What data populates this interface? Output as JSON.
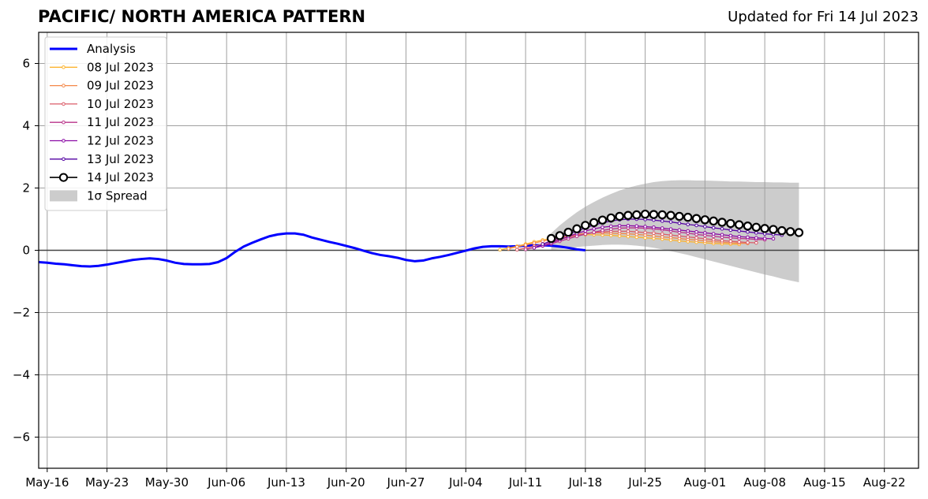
{
  "header": {
    "title": "PACIFIC/ NORTH AMERICA PATTERN",
    "updated": "Updated for Fri 14 Jul 2023"
  },
  "chart_data": {
    "type": "line",
    "title": "PACIFIC/ NORTH AMERICA PATTERN",
    "subtitle": "Updated for Fri 14 Jul 2023",
    "xlabel": "",
    "ylabel": "",
    "xlim": [
      "2023-05-15",
      "2023-08-26"
    ],
    "ylim": [
      -7,
      7
    ],
    "x_ticks": [
      "May-16",
      "May-23",
      "May-30",
      "Jun-06",
      "Jun-13",
      "Jun-20",
      "Jun-27",
      "Jul-04",
      "Jul-11",
      "Jul-18",
      "Jul-25",
      "Aug-01",
      "Aug-08",
      "Aug-15",
      "Aug-22"
    ],
    "x_tick_dates": [
      "2023-05-16",
      "2023-05-23",
      "2023-05-30",
      "2023-06-06",
      "2023-06-13",
      "2023-06-20",
      "2023-06-27",
      "2023-07-04",
      "2023-07-11",
      "2023-07-18",
      "2023-07-25",
      "2023-08-01",
      "2023-08-08",
      "2023-08-15",
      "2023-08-22"
    ],
    "y_ticks": [
      6,
      4,
      2,
      0,
      -2,
      -4,
      -6
    ],
    "y_tick_labels": [
      "6",
      "4",
      "2",
      "0",
      "−2",
      "−4",
      "−6"
    ],
    "grid": true,
    "legend_position": "top-left",
    "zero_line": 0,
    "analysis": {
      "name": "Analysis",
      "color": "#0000ff",
      "start": "2023-05-15",
      "values": [
        -0.38,
        -0.4,
        -0.43,
        -0.45,
        -0.48,
        -0.51,
        -0.52,
        -0.5,
        -0.46,
        -0.41,
        -0.36,
        -0.31,
        -0.28,
        -0.26,
        -0.28,
        -0.33,
        -0.4,
        -0.44,
        -0.45,
        -0.45,
        -0.44,
        -0.38,
        -0.25,
        -0.05,
        0.12,
        0.24,
        0.35,
        0.45,
        0.51,
        0.54,
        0.54,
        0.5,
        0.41,
        0.34,
        0.27,
        0.21,
        0.14,
        0.07,
        -0.01,
        -0.09,
        -0.15,
        -0.19,
        -0.24,
        -0.31,
        -0.35,
        -0.33,
        -0.26,
        -0.21,
        -0.15,
        -0.08,
        -0.01,
        0.06,
        0.11,
        0.13,
        0.13,
        0.12,
        0.13,
        0.15,
        0.16,
        0.16,
        0.15,
        0.12,
        0.08,
        0.03,
        0.0
      ]
    },
    "series": [
      {
        "name": "08 Jul 2023",
        "color": "#fdb42f",
        "start": "2023-07-08",
        "values": [
          0.02,
          0.07,
          0.13,
          0.2,
          0.27,
          0.33,
          0.38,
          0.43,
          0.47,
          0.49,
          0.5,
          0.5,
          0.49,
          0.48,
          0.46,
          0.44,
          0.42,
          0.4,
          0.38,
          0.36,
          0.33,
          0.3,
          0.28,
          0.26,
          0.24,
          0.22,
          0.21,
          0.2,
          0.19
        ]
      },
      {
        "name": "09 Jul 2023",
        "color": "#f48849",
        "start": "2023-07-09",
        "values": [
          0.05,
          0.11,
          0.17,
          0.23,
          0.29,
          0.35,
          0.41,
          0.46,
          0.51,
          0.54,
          0.56,
          0.56,
          0.55,
          0.54,
          0.53,
          0.51,
          0.49,
          0.46,
          0.43,
          0.41,
          0.38,
          0.35,
          0.33,
          0.3,
          0.28,
          0.26,
          0.24,
          0.23,
          0.22
        ]
      },
      {
        "name": "10 Jul 2023",
        "color": "#db5c68",
        "start": "2023-07-10",
        "values": [
          0.02,
          0.07,
          0.13,
          0.2,
          0.28,
          0.35,
          0.42,
          0.48,
          0.53,
          0.57,
          0.59,
          0.61,
          0.61,
          0.61,
          0.59,
          0.57,
          0.55,
          0.52,
          0.49,
          0.46,
          0.43,
          0.4,
          0.37,
          0.34,
          0.31,
          0.29,
          0.27,
          0.25,
          0.24
        ]
      },
      {
        "name": "11 Jul 2023",
        "color": "#b83289",
        "start": "2023-07-11",
        "values": [
          0.03,
          0.08,
          0.14,
          0.21,
          0.29,
          0.37,
          0.45,
          0.52,
          0.58,
          0.64,
          0.68,
          0.71,
          0.72,
          0.72,
          0.71,
          0.69,
          0.66,
          0.62,
          0.58,
          0.55,
          0.51,
          0.48,
          0.45,
          0.42,
          0.4,
          0.38,
          0.37,
          0.35,
          0.34
        ]
      },
      {
        "name": "12 Jul 2023",
        "color": "#8b0aa5",
        "start": "2023-07-12",
        "values": [
          0.08,
          0.15,
          0.24,
          0.34,
          0.44,
          0.54,
          0.62,
          0.69,
          0.74,
          0.77,
          0.79,
          0.79,
          0.78,
          0.76,
          0.74,
          0.71,
          0.68,
          0.65,
          0.62,
          0.59,
          0.56,
          0.53,
          0.5,
          0.47,
          0.44,
          0.42,
          0.4,
          0.38,
          0.37
        ]
      },
      {
        "name": "13 Jul 2023",
        "color": "#5302a3",
        "start": "2023-07-13",
        "values": [
          0.2,
          0.3,
          0.41,
          0.52,
          0.62,
          0.72,
          0.81,
          0.88,
          0.94,
          0.98,
          1.0,
          1.0,
          0.99,
          0.97,
          0.94,
          0.91,
          0.87,
          0.83,
          0.8,
          0.76,
          0.72,
          0.69,
          0.65,
          0.62,
          0.59,
          0.56,
          0.53,
          0.51,
          0.49
        ]
      },
      {
        "name": "14 Jul 2023",
        "color": "#000000",
        "start": "2023-07-14",
        "values": [
          0.38,
          0.47,
          0.58,
          0.69,
          0.8,
          0.89,
          0.97,
          1.04,
          1.09,
          1.12,
          1.14,
          1.16,
          1.15,
          1.14,
          1.12,
          1.09,
          1.06,
          1.02,
          0.98,
          0.94,
          0.9,
          0.86,
          0.82,
          0.78,
          0.74,
          0.7,
          0.67,
          0.63,
          0.6,
          0.57
        ]
      }
    ],
    "spread": {
      "name": "1σ Spread",
      "color": "#cccccc",
      "start": "2023-07-14",
      "upper": [
        0.55,
        0.8,
        1.02,
        1.22,
        1.4,
        1.55,
        1.69,
        1.81,
        1.92,
        2.01,
        2.08,
        2.14,
        2.19,
        2.22,
        2.24,
        2.25,
        2.25,
        2.24,
        2.24,
        2.23,
        2.22,
        2.21,
        2.21,
        2.2,
        2.19,
        2.19,
        2.18,
        2.18,
        2.17,
        2.17
      ],
      "lower": [
        0.02,
        0.04,
        0.07,
        0.1,
        0.13,
        0.15,
        0.17,
        0.18,
        0.18,
        0.17,
        0.15,
        0.12,
        0.08,
        0.03,
        -0.03,
        -0.09,
        -0.15,
        -0.22,
        -0.29,
        -0.36,
        -0.43,
        -0.5,
        -0.57,
        -0.64,
        -0.71,
        -0.78,
        -0.84,
        -0.91,
        -0.97,
        -1.03
      ]
    }
  }
}
